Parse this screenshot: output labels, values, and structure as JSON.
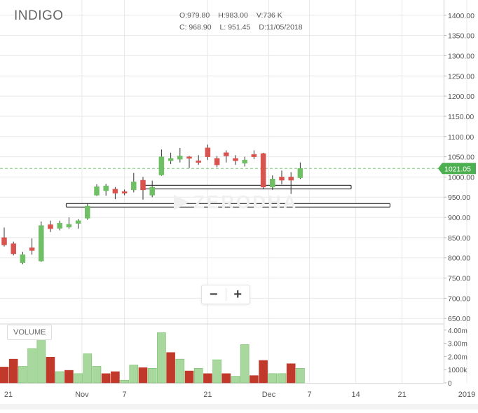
{
  "symbol": "INDIGO",
  "ohlc": {
    "open": "O:979.80",
    "high": "H:983.00",
    "volume": "V:736 K",
    "close": "C: 968.90",
    "low": "L: 951.45",
    "date": "D:11/05/2018"
  },
  "watermark": "ZERODHA",
  "volume_label": "VOLUME",
  "zoom": {
    "out": "−",
    "in": "+"
  },
  "colors": {
    "up": "#6fbf64",
    "up_fill": "#a8d89e",
    "down": "#d9534f",
    "down_fill": "#c0392b",
    "grid": "#e8e8e8",
    "last_price": "#4caf50"
  },
  "chart_data": {
    "type": "candlestick",
    "last_price": "1021.05",
    "y_ticks": [
      "1400.00",
      "1350.00",
      "1300.00",
      "1250.00",
      "1200.00",
      "1150.00",
      "1100.00",
      "1050.00",
      "1000.00",
      "950.00",
      "900.00",
      "850.00",
      "800.00",
      "750.00",
      "700.00",
      "650.00"
    ],
    "y_range": [
      640,
      1410
    ],
    "volume_ticks": [
      "4.00m",
      "3.00m",
      "2.00m",
      "1000k",
      "0"
    ],
    "volume_range": [
      0,
      4200
    ],
    "x_labels": [
      {
        "label": "21",
        "slot": -0.5
      },
      {
        "label": "Nov",
        "slot": 8.4
      },
      {
        "label": "7",
        "slot": 13
      },
      {
        "label": "21",
        "slot": 22
      },
      {
        "label": "Dec",
        "slot": 28.6
      },
      {
        "label": "7",
        "slot": 33
      },
      {
        "label": "14",
        "slot": 38
      },
      {
        "label": "21",
        "slot": 43
      },
      {
        "label": "2019",
        "slot": 50
      }
    ],
    "candles": [
      {
        "o": 850,
        "h": 875,
        "l": 828,
        "c": 832
      },
      {
        "o": 835,
        "h": 840,
        "l": 806,
        "c": 810
      },
      {
        "o": 788,
        "h": 815,
        "l": 784,
        "c": 808
      },
      {
        "o": 825,
        "h": 848,
        "l": 808,
        "c": 818
      },
      {
        "o": 792,
        "h": 890,
        "l": 790,
        "c": 880
      },
      {
        "o": 882,
        "h": 892,
        "l": 864,
        "c": 872
      },
      {
        "o": 873,
        "h": 892,
        "l": 868,
        "c": 886
      },
      {
        "o": 876,
        "h": 900,
        "l": 872,
        "c": 883
      },
      {
        "o": 885,
        "h": 896,
        "l": 872,
        "c": 892
      },
      {
        "o": 898,
        "h": 935,
        "l": 894,
        "c": 928
      },
      {
        "o": 955,
        "h": 982,
        "l": 953,
        "c": 976
      },
      {
        "o": 966,
        "h": 983,
        "l": 954,
        "c": 978
      },
      {
        "o": 970,
        "h": 975,
        "l": 945,
        "c": 960
      },
      {
        "o": 964,
        "h": 969,
        "l": 955,
        "c": 960
      },
      {
        "o": 968,
        "h": 1010,
        "l": 962,
        "c": 988
      },
      {
        "o": 992,
        "h": 1000,
        "l": 944,
        "c": 968
      },
      {
        "o": 955,
        "h": 991,
        "l": 950,
        "c": 975
      },
      {
        "o": 1005,
        "h": 1068,
        "l": 1003,
        "c": 1050
      },
      {
        "o": 1040,
        "h": 1060,
        "l": 1032,
        "c": 1046
      },
      {
        "o": 1044,
        "h": 1072,
        "l": 1036,
        "c": 1052
      },
      {
        "o": 1050,
        "h": 1052,
        "l": 1022,
        "c": 1046
      },
      {
        "o": 1040,
        "h": 1054,
        "l": 1030,
        "c": 1036
      },
      {
        "o": 1072,
        "h": 1080,
        "l": 1042,
        "c": 1050
      },
      {
        "o": 1046,
        "h": 1052,
        "l": 1024,
        "c": 1030
      },
      {
        "o": 1060,
        "h": 1066,
        "l": 1036,
        "c": 1052
      },
      {
        "o": 1046,
        "h": 1054,
        "l": 1030,
        "c": 1040
      },
      {
        "o": 1034,
        "h": 1050,
        "l": 1026,
        "c": 1042
      },
      {
        "o": 1056,
        "h": 1066,
        "l": 1044,
        "c": 1050
      },
      {
        "o": 1058,
        "h": 1060,
        "l": 970,
        "c": 975
      },
      {
        "o": 975,
        "h": 1004,
        "l": 968,
        "c": 995
      },
      {
        "o": 1000,
        "h": 1016,
        "l": 982,
        "c": 992
      },
      {
        "o": 1000,
        "h": 1012,
        "l": 958,
        "c": 992
      },
      {
        "o": 998,
        "h": 1036,
        "l": 995,
        "c": 1021
      }
    ],
    "volumes": [
      {
        "v": 1200,
        "up": false
      },
      {
        "v": 1800,
        "up": false
      },
      {
        "v": 1250,
        "up": true
      },
      {
        "v": 2600,
        "up": true
      },
      {
        "v": 4300,
        "up": true
      },
      {
        "v": 1950,
        "up": false
      },
      {
        "v": 850,
        "up": true
      },
      {
        "v": 950,
        "up": false
      },
      {
        "v": 700,
        "up": true
      },
      {
        "v": 2200,
        "up": true
      },
      {
        "v": 1250,
        "up": true
      },
      {
        "v": 700,
        "up": false
      },
      {
        "v": 850,
        "up": false
      },
      {
        "v": 200,
        "up": true
      },
      {
        "v": 1350,
        "up": true
      },
      {
        "v": 1150,
        "up": false
      },
      {
        "v": 1100,
        "up": true
      },
      {
        "v": 3800,
        "up": true
      },
      {
        "v": 2300,
        "up": false
      },
      {
        "v": 1800,
        "up": true
      },
      {
        "v": 900,
        "up": false
      },
      {
        "v": 1100,
        "up": true
      },
      {
        "v": 700,
        "up": false
      },
      {
        "v": 1750,
        "up": true
      },
      {
        "v": 700,
        "up": false
      },
      {
        "v": 500,
        "up": true
      },
      {
        "v": 2900,
        "up": true
      },
      {
        "v": 550,
        "up": false
      },
      {
        "v": 1700,
        "up": false
      },
      {
        "v": 700,
        "up": true
      },
      {
        "v": 700,
        "up": true
      },
      {
        "v": 1450,
        "up": false
      },
      {
        "v": 1100,
        "up": true
      }
    ],
    "support_lines": [
      {
        "price": 975,
        "from_slot": 15,
        "to_slot": 37.5
      },
      {
        "price": 930,
        "from_slot": 6.7,
        "to_slot": 41.7
      }
    ]
  }
}
